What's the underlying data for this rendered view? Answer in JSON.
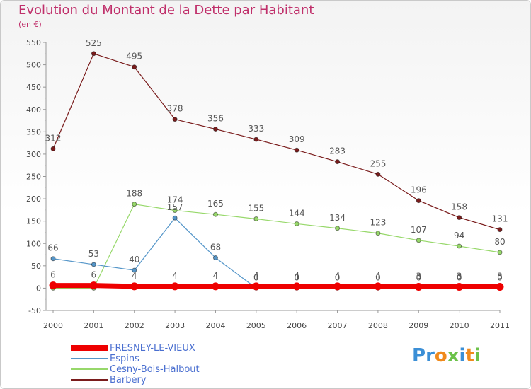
{
  "title": "Evolution du Montant de la Dette par Habitant",
  "unit_label": "(en €)",
  "logo": {
    "text": "Proxiti",
    "letters": [
      "P",
      "r",
      "o",
      "x",
      "i",
      "t",
      "i"
    ],
    "colors": [
      "#3b8fd6",
      "#3b8fd6",
      "#f08a1c",
      "#6cc24a",
      "#3b8fd6",
      "#f08a1c",
      "#6cc24a"
    ]
  },
  "chart_data": {
    "type": "line",
    "title": "Evolution du Montant de la Dette par Habitant",
    "ylabel": "(en €)",
    "xlabel": "",
    "ylim": [
      -50,
      550
    ],
    "yticks": [
      -50,
      0,
      50,
      100,
      150,
      200,
      250,
      300,
      350,
      400,
      450,
      500,
      550
    ],
    "categories": [
      "2000",
      "2001",
      "2002",
      "2003",
      "2004",
      "2005",
      "2006",
      "2007",
      "2008",
      "2009",
      "2010",
      "2011"
    ],
    "series": [
      {
        "name": "Barbery",
        "color": "#7a1c1c",
        "width": 1.2,
        "values": [
          312,
          525,
          495,
          378,
          356,
          333,
          309,
          283,
          255,
          196,
          158,
          131
        ],
        "labels": [
          "312",
          "525",
          "495",
          "378",
          "356",
          "333",
          "309",
          "283",
          "255",
          "196",
          "158",
          "131"
        ]
      },
      {
        "name": "Cesny-Bois-Halbout",
        "color": "#97d86a",
        "width": 1.2,
        "values": [
          0,
          0,
          188,
          174,
          165,
          155,
          144,
          134,
          123,
          107,
          94,
          80
        ],
        "labels": [
          "",
          "",
          "188",
          "174",
          "165",
          "155",
          "144",
          "134",
          "123",
          "107",
          "94",
          "80"
        ]
      },
      {
        "name": "Espins",
        "color": "#5596c9",
        "width": 1.2,
        "values": [
          66,
          53,
          40,
          157,
          68,
          0,
          0,
          0,
          0,
          0,
          0,
          0
        ],
        "labels": [
          "66",
          "53",
          "40",
          "157",
          "68",
          "0",
          "0",
          "0",
          "0",
          "0",
          "0",
          "0"
        ]
      },
      {
        "name": "FRESNEY-LE-VIEUX",
        "color": "#ee0000",
        "width": 7,
        "values": [
          6,
          6,
          4,
          4,
          4,
          4,
          4,
          4,
          4,
          3,
          3,
          3
        ],
        "labels": [
          "6",
          "6",
          "4",
          "4",
          "4",
          "4",
          "4",
          "4",
          "4",
          "3",
          "3",
          "3"
        ]
      }
    ],
    "legend": [
      "FRESNEY-LE-VIEUX",
      "Espins",
      "Cesny-Bois-Halbout",
      "Barbery"
    ],
    "legend_colors": [
      "#ee0000",
      "#5596c9",
      "#97d86a",
      "#7a1c1c"
    ],
    "legend_label_colors": [
      "#4a6fd0",
      "#4a6fd0",
      "#4a6fd0",
      "#4a6fd0"
    ],
    "legend_placement": "bottom-left",
    "grid": false
  }
}
